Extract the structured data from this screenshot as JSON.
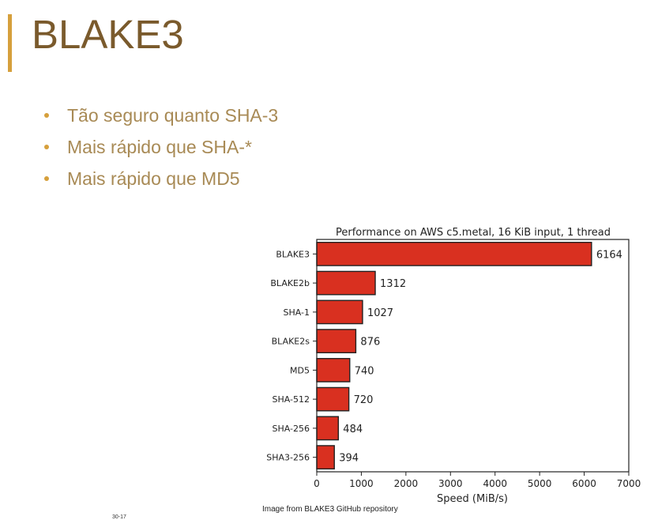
{
  "slide": {
    "title": "BLAKE3",
    "bullets": [
      "Tão seguro quanto SHA-3",
      "Mais rápido que SHA-*",
      "Mais rápido que MD5"
    ],
    "caption": "Image from BLAKE3 GitHub repository",
    "page_number": "30-17"
  },
  "colors": {
    "accent": "#d6a03c",
    "title": "#7a5a2c",
    "bullet_text": "#a88a55",
    "bar_fill": "#d93020",
    "bar_edge": "#222222"
  },
  "chart_data": {
    "type": "bar",
    "orientation": "horizontal",
    "title": "Performance on AWS c5.metal, 16 KiB input, 1 thread",
    "xlabel": "Speed (MiB/s)",
    "ylabel": "",
    "categories": [
      "BLAKE3",
      "BLAKE2b",
      "SHA-1",
      "BLAKE2s",
      "MD5",
      "SHA-512",
      "SHA-256",
      "SHA3-256"
    ],
    "values": [
      6164,
      1312,
      1027,
      876,
      740,
      720,
      484,
      394
    ],
    "data_labels": [
      "6164",
      "1312",
      "1027",
      "876",
      "740",
      "720",
      "484",
      "394"
    ],
    "xlim": [
      0,
      7000
    ],
    "xticks": [
      "0",
      "1000",
      "2000",
      "3000",
      "4000",
      "5000",
      "6000",
      "7000"
    ],
    "grid": false,
    "legend": "none"
  }
}
